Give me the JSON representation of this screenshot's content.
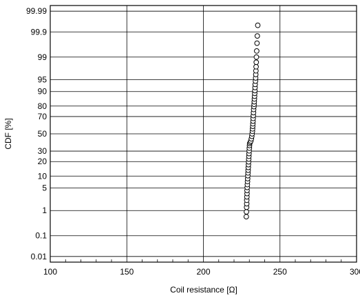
{
  "chart_data": {
    "type": "scatter",
    "title": "",
    "xlabel": "Coil resistance [Ω]",
    "ylabel": "CDF  [%]",
    "x_scale": "linear",
    "y_scale": "normal-probability",
    "xlim": [
      100,
      300
    ],
    "ylim": [
      0.005,
      99.995
    ],
    "x_ticks": [
      100,
      150,
      200,
      250,
      300
    ],
    "x_tick_labels": [
      "100",
      "150",
      "200",
      "250",
      "300"
    ],
    "y_ticks": [
      0.01,
      0.1,
      1,
      5,
      10,
      20,
      30,
      50,
      70,
      80,
      90,
      95,
      99,
      99.9,
      99.99
    ],
    "y_tick_labels": [
      "0.01",
      "0.1",
      "1",
      "5",
      "10",
      "20",
      "30",
      "50",
      "70",
      "80",
      "90",
      "95",
      "99",
      "99.9",
      "99.99"
    ],
    "grid": true,
    "marker": "open-circle",
    "series": [
      {
        "points": [
          [
            228.0,
            0.6
          ],
          [
            228.1,
            0.9
          ],
          [
            228.2,
            1.3
          ],
          [
            228.3,
            1.7
          ],
          [
            228.3,
            2.2
          ],
          [
            228.4,
            2.8
          ],
          [
            228.5,
            3.5
          ],
          [
            228.5,
            4.3
          ],
          [
            228.6,
            5.2
          ],
          [
            228.7,
            6.2
          ],
          [
            228.8,
            7.4
          ],
          [
            228.9,
            8.7
          ],
          [
            229.0,
            10.2
          ],
          [
            229.1,
            11.8
          ],
          [
            229.2,
            13.5
          ],
          [
            229.3,
            15.4
          ],
          [
            229.4,
            17.5
          ],
          [
            229.5,
            19.8
          ],
          [
            229.6,
            22.2
          ],
          [
            229.7,
            24.8
          ],
          [
            229.8,
            27.5
          ],
          [
            229.9,
            30.3
          ],
          [
            230.0,
            33.2
          ],
          [
            230.1,
            36.1
          ],
          [
            230.2,
            38.5
          ],
          [
            230.6,
            40.0
          ],
          [
            231.0,
            41.5
          ],
          [
            231.3,
            44.0
          ],
          [
            231.6,
            47.0
          ],
          [
            231.8,
            50.0
          ],
          [
            232.0,
            53.0
          ],
          [
            232.1,
            56.0
          ],
          [
            232.2,
            59.0
          ],
          [
            232.3,
            62.0
          ],
          [
            232.4,
            65.0
          ],
          [
            232.5,
            68.0
          ],
          [
            232.6,
            71.0
          ],
          [
            232.7,
            74.0
          ],
          [
            232.8,
            77.0
          ],
          [
            233.0,
            79.5
          ],
          [
            233.1,
            81.5
          ],
          [
            233.2,
            83.5
          ],
          [
            233.3,
            85.5
          ],
          [
            233.4,
            87.3
          ],
          [
            233.5,
            89.0
          ],
          [
            233.6,
            90.5
          ],
          [
            233.7,
            92.0
          ],
          [
            233.8,
            93.3
          ],
          [
            234.0,
            94.5
          ],
          [
            234.1,
            95.5
          ],
          [
            234.2,
            96.4
          ],
          [
            234.3,
            97.2
          ],
          [
            234.4,
            97.9
          ],
          [
            234.5,
            98.5
          ],
          [
            234.6,
            99.0
          ],
          [
            234.8,
            99.4
          ],
          [
            235.0,
            99.7
          ],
          [
            235.2,
            99.85
          ],
          [
            235.5,
            99.95
          ]
        ]
      }
    ]
  }
}
